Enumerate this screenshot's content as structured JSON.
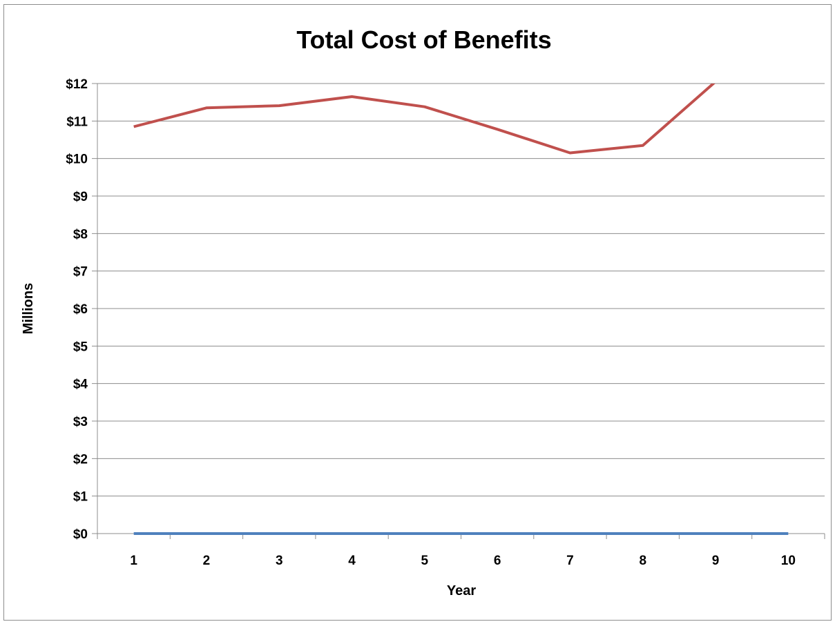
{
  "chart_data": {
    "type": "line",
    "title": "Total Cost of Benefits",
    "xlabel": "Year",
    "ylabel": "Millions",
    "categories": [
      "1",
      "2",
      "3",
      "4",
      "5",
      "6",
      "7",
      "8",
      "9",
      "10"
    ],
    "ylim": [
      0,
      12
    ],
    "yticks": [
      {
        "value": 0,
        "label": "$0"
      },
      {
        "value": 1,
        "label": "$1"
      },
      {
        "value": 2,
        "label": "$2"
      },
      {
        "value": 3,
        "label": "$3"
      },
      {
        "value": 4,
        "label": "$4"
      },
      {
        "value": 5,
        "label": "$5"
      },
      {
        "value": 6,
        "label": "$6"
      },
      {
        "value": 7,
        "label": "$7"
      },
      {
        "value": 8,
        "label": "$8"
      },
      {
        "value": 9,
        "label": "$9"
      },
      {
        "value": 10,
        "label": "$10"
      },
      {
        "value": 11,
        "label": "$11"
      },
      {
        "value": 12,
        "label": "$12"
      }
    ],
    "grid": true,
    "legend": "none",
    "series": [
      {
        "color": "#c0504d",
        "values": [
          10.85,
          11.35,
          11.41,
          11.65,
          11.38,
          10.78,
          10.15,
          10.35,
          12.05,
          null
        ]
      },
      {
        "color": "#4f81bd",
        "values": [
          0,
          0,
          0,
          0,
          0,
          0,
          0,
          0,
          0,
          0
        ]
      }
    ]
  }
}
